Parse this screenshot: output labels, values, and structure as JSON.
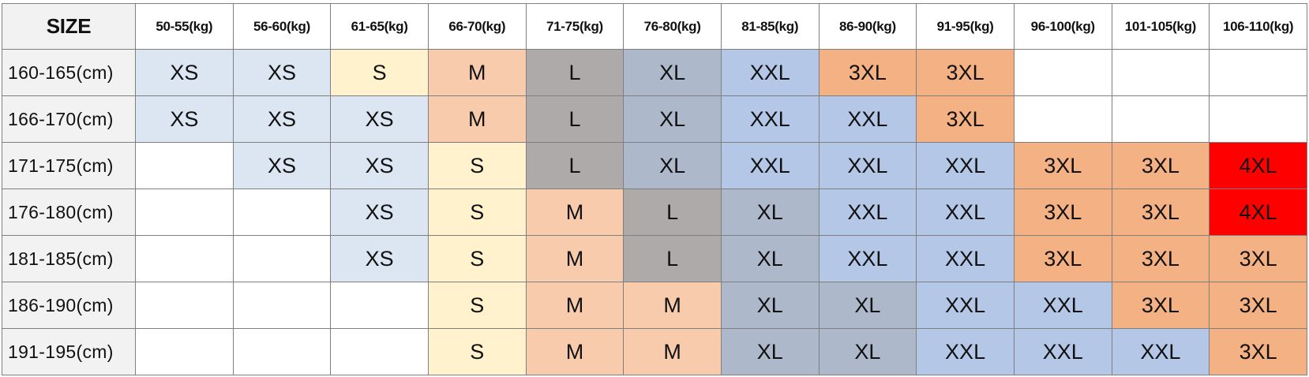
{
  "table": {
    "corner_label": "SIZE",
    "weight_headers": [
      "50-55(kg)",
      "56-60(kg)",
      "61-65(kg)",
      "66-70(kg)",
      "71-75(kg)",
      "76-80(kg)",
      "81-85(kg)",
      "86-90(kg)",
      "91-95(kg)",
      "96-100(kg)",
      "101-105(kg)",
      "106-110(kg)"
    ],
    "rows": [
      {
        "height": "160-165(cm)",
        "sizes": [
          "XS",
          "XS",
          "S",
          "M",
          "L",
          "XL",
          "XXL",
          "3XL",
          "3XL",
          "",
          "",
          ""
        ]
      },
      {
        "height": "166-170(cm)",
        "sizes": [
          "XS",
          "XS",
          "XS",
          "M",
          "L",
          "XL",
          "XXL",
          "XXL",
          "3XL",
          "",
          "",
          ""
        ]
      },
      {
        "height": "171-175(cm)",
        "sizes": [
          "",
          "XS",
          "XS",
          "S",
          "L",
          "XL",
          "XXL",
          "XXL",
          "XXL",
          "3XL",
          "3XL",
          "4XL"
        ]
      },
      {
        "height": "176-180(cm)",
        "sizes": [
          "",
          "",
          "XS",
          "S",
          "M",
          "L",
          "XL",
          "XXL",
          "XXL",
          "3XL",
          "3XL",
          "4XL"
        ]
      },
      {
        "height": "181-185(cm)",
        "sizes": [
          "",
          "",
          "XS",
          "S",
          "M",
          "L",
          "XL",
          "XXL",
          "XXL",
          "3XL",
          "3XL",
          "3XL"
        ]
      },
      {
        "height": "186-190(cm)",
        "sizes": [
          "",
          "",
          "",
          "S",
          "M",
          "M",
          "XL",
          "XL",
          "XXL",
          "XXL",
          "3XL",
          "3XL"
        ]
      },
      {
        "height": "191-195(cm)",
        "sizes": [
          "",
          "",
          "",
          "S",
          "M",
          "M",
          "XL",
          "XL",
          "XXL",
          "XXL",
          "XXL",
          "3XL"
        ]
      }
    ]
  },
  "size_colors": {
    "XS": "#dce6f2",
    "S": "#fff2cc",
    "M": "#f8cbad",
    "L": "#aeaaaa",
    "XL": "#adb9ca",
    "XXL": "#b4c7e7",
    "3XL": "#f4b183",
    "4XL": "#ff0000",
    "empty": "#ffffff"
  }
}
